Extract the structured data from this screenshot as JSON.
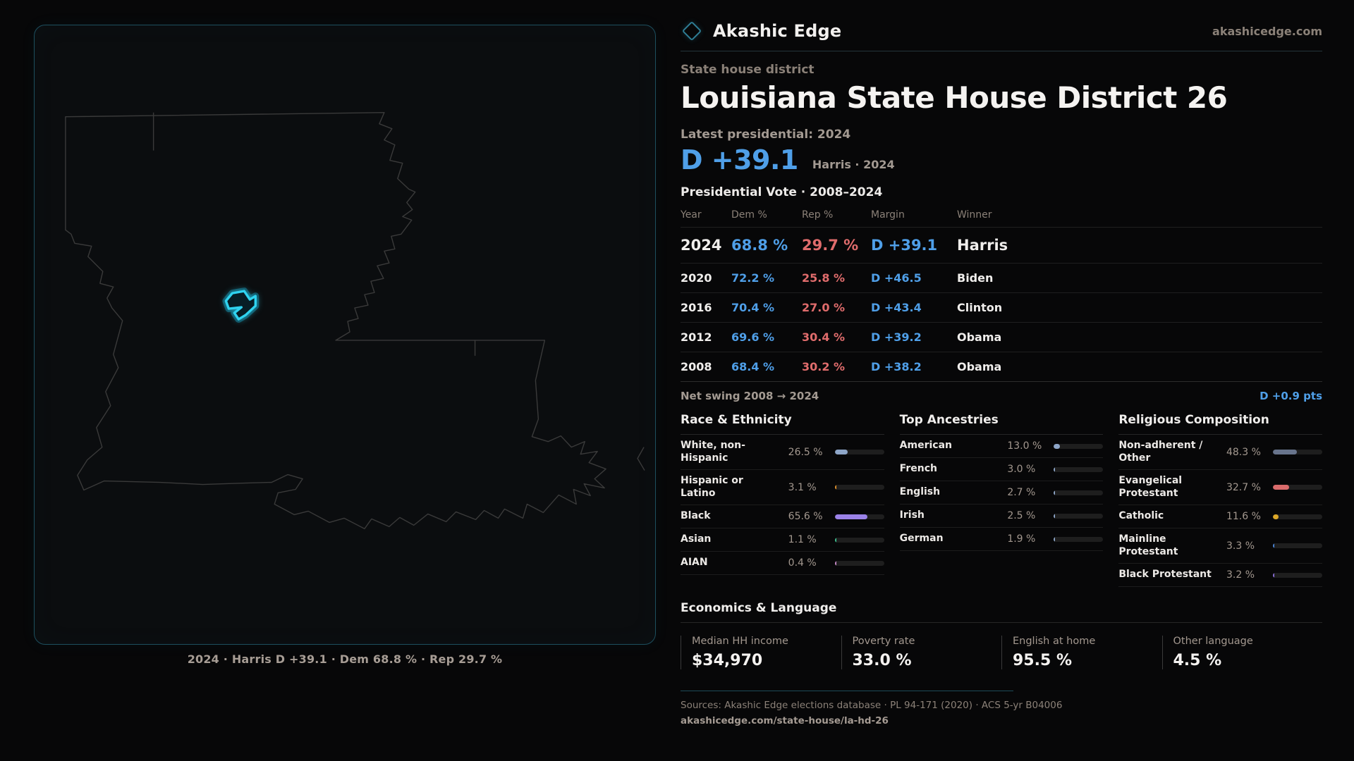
{
  "brand": {
    "name": "Akashic Edge",
    "domain": "akashicedge.com"
  },
  "page": {
    "kicker": "State house district",
    "title": "Louisiana State House District 26"
  },
  "latest": {
    "label": "Latest presidential: 2024",
    "margin": "D +39.1",
    "note": "Harris · 2024"
  },
  "elections": {
    "title": "Presidential Vote · 2008–2024",
    "columns": [
      "Year",
      "Dem %",
      "Rep %",
      "Margin",
      "Winner"
    ],
    "rows": [
      {
        "year": "2024",
        "dem": "68.8 %",
        "rep": "29.7 %",
        "margin": "D +39.1",
        "winner": "Harris",
        "emphasis": true
      },
      {
        "year": "2020",
        "dem": "72.2 %",
        "rep": "25.8 %",
        "margin": "D +46.5",
        "winner": "Biden",
        "emphasis": false
      },
      {
        "year": "2016",
        "dem": "70.4 %",
        "rep": "27.0 %",
        "margin": "D +43.4",
        "winner": "Clinton",
        "emphasis": false
      },
      {
        "year": "2012",
        "dem": "69.6 %",
        "rep": "30.4 %",
        "margin": "D +39.2",
        "winner": "Obama",
        "emphasis": false
      },
      {
        "year": "2008",
        "dem": "68.4 %",
        "rep": "30.2 %",
        "margin": "D +38.2",
        "winner": "Obama",
        "emphasis": false
      }
    ],
    "net_swing": {
      "label": "Net swing 2008 → 2024",
      "value": "D +0.9 pts"
    }
  },
  "demographics": [
    {
      "id": "race",
      "title": "Race & Ethnicity",
      "items": [
        {
          "label": "White, non-Hispanic",
          "value": "26.5 %",
          "pct": 26.5,
          "color": "#8ea6c8"
        },
        {
          "label": "Hispanic or Latino",
          "value": "3.1 %",
          "pct": 3.1,
          "color": "#e0912b"
        },
        {
          "label": "Black",
          "value": "65.6 %",
          "pct": 65.6,
          "color": "#9b82e8"
        },
        {
          "label": "Asian",
          "value": "1.1 %",
          "pct": 1.1,
          "color": "#3dbf8f"
        },
        {
          "label": "AIAN",
          "value": "0.4 %",
          "pct": 0.4,
          "color": "#c88ac8"
        }
      ]
    },
    {
      "id": "ancestries",
      "title": "Top Ancestries",
      "items": [
        {
          "label": "American",
          "value": "13.0 %",
          "pct": 13.0,
          "color": "#8ea6c8"
        },
        {
          "label": "French",
          "value": "3.0 %",
          "pct": 3.0,
          "color": "#8ea6c8"
        },
        {
          "label": "English",
          "value": "2.7 %",
          "pct": 2.7,
          "color": "#8ea6c8"
        },
        {
          "label": "Irish",
          "value": "2.5 %",
          "pct": 2.5,
          "color": "#8ea6c8"
        },
        {
          "label": "German",
          "value": "1.9 %",
          "pct": 1.9,
          "color": "#8ea6c8"
        }
      ]
    },
    {
      "id": "religion",
      "title": "Religious Composition",
      "items": [
        {
          "label": "Non-adherent / Other",
          "value": "48.3 %",
          "pct": 48.3,
          "color": "#68748c"
        },
        {
          "label": "Evangelical Protestant",
          "value": "32.7 %",
          "pct": 32.7,
          "color": "#d96b6b"
        },
        {
          "label": "Catholic",
          "value": "11.6 %",
          "pct": 11.6,
          "color": "#dba728"
        },
        {
          "label": "Mainline Protestant",
          "value": "3.3 %",
          "pct": 3.3,
          "color": "#4a86d8"
        },
        {
          "label": "Black Protestant",
          "value": "3.2 %",
          "pct": 3.2,
          "color": "#8a6fd8"
        }
      ]
    }
  ],
  "economics": {
    "title": "Economics & Language",
    "stats": [
      {
        "label": "Median HH income",
        "value": "$34,970"
      },
      {
        "label": "Poverty rate",
        "value": "33.0 %"
      },
      {
        "label": "English at home",
        "value": "95.5 %"
      },
      {
        "label": "Other language",
        "value": "4.5 %"
      }
    ]
  },
  "map": {
    "caption": "2024 · Harris D +39.1 · Dem 68.8 % · Rep 29.7 %"
  },
  "footer": {
    "sources": "Sources: Akashic Edge elections database · PL 94-171 (2020) · ACS 5-yr B04006",
    "permalink": "akashicedge.com/state-house/la-hd-26"
  },
  "colors": {
    "dem_blue": "#4f9fe8",
    "rep_red": "#e06c6c",
    "district_cyan": "#2fd3f0",
    "accent_teal": "#1d4f5e"
  },
  "chart_data": [
    {
      "type": "table",
      "title": "Presidential Vote · 2008–2024",
      "columns": [
        "Year",
        "Dem %",
        "Rep %",
        "Margin",
        "Winner"
      ],
      "rows": [
        [
          "2024",
          68.8,
          29.7,
          "D +39.1",
          "Harris"
        ],
        [
          "2020",
          72.2,
          25.8,
          "D +46.5",
          "Biden"
        ],
        [
          "2016",
          70.4,
          27.0,
          "D +43.4",
          "Clinton"
        ],
        [
          "2012",
          69.6,
          30.4,
          "D +39.2",
          "Obama"
        ],
        [
          "2008",
          68.4,
          30.2,
          "D +38.2",
          "Obama"
        ]
      ],
      "net_swing_2008_2024": "D +0.9 pts"
    },
    {
      "type": "bar",
      "title": "Race & Ethnicity",
      "categories": [
        "White, non-Hispanic",
        "Hispanic or Latino",
        "Black",
        "Asian",
        "AIAN"
      ],
      "values": [
        26.5,
        3.1,
        65.6,
        1.1,
        0.4
      ],
      "unit": "%",
      "xlim": [
        0,
        100
      ]
    },
    {
      "type": "bar",
      "title": "Top Ancestries",
      "categories": [
        "American",
        "French",
        "English",
        "Irish",
        "German"
      ],
      "values": [
        13.0,
        3.0,
        2.7,
        2.5,
        1.9
      ],
      "unit": "%",
      "xlim": [
        0,
        100
      ]
    },
    {
      "type": "bar",
      "title": "Religious Composition",
      "categories": [
        "Non-adherent / Other",
        "Evangelical Protestant",
        "Catholic",
        "Mainline Protestant",
        "Black Protestant"
      ],
      "values": [
        48.3,
        32.7,
        11.6,
        3.3,
        3.2
      ],
      "unit": "%",
      "xlim": [
        0,
        100
      ]
    }
  ]
}
